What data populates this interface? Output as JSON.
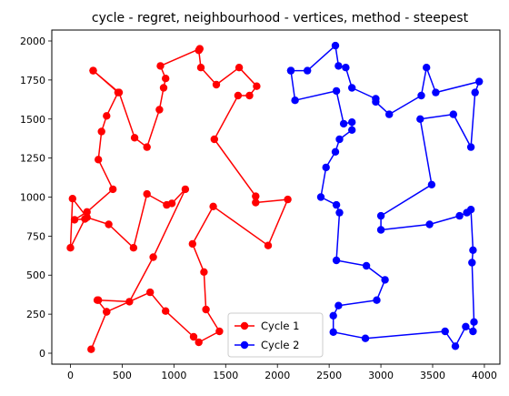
{
  "chart_data": {
    "type": "line",
    "title": "cycle - regret, neighbourhood - vertices, method - steepest",
    "xlabel": "",
    "ylabel": "",
    "xlim": [
      -180,
      4150
    ],
    "ylim": [
      -70,
      2070
    ],
    "xticks": [
      0,
      500,
      1000,
      1500,
      2000,
      2500,
      3000,
      3500,
      4000
    ],
    "yticks": [
      0,
      250,
      500,
      750,
      1000,
      1250,
      1500,
      1750,
      2000
    ],
    "grid": false,
    "legend": "lower center",
    "series": [
      {
        "name": "Cycle 1",
        "color": "#ff0000",
        "points": [
          [
            220,
            1810
          ],
          [
            460,
            1670
          ],
          [
            350,
            1520
          ],
          [
            300,
            1420
          ],
          [
            270,
            1240
          ],
          [
            410,
            1050
          ],
          [
            160,
            905
          ],
          [
            40,
            855
          ],
          [
            140,
            860
          ],
          [
            0,
            675
          ],
          [
            20,
            990
          ],
          [
            160,
            870
          ],
          [
            370,
            825
          ],
          [
            610,
            675
          ],
          [
            740,
            1020
          ],
          [
            930,
            950
          ],
          [
            980,
            960
          ],
          [
            1110,
            1050
          ],
          [
            800,
            615
          ],
          [
            570,
            330
          ],
          [
            270,
            340
          ],
          [
            260,
            340
          ],
          [
            350,
            265
          ],
          [
            200,
            25
          ],
          [
            350,
            265
          ],
          [
            770,
            390
          ],
          [
            920,
            270
          ],
          [
            1190,
            105
          ],
          [
            1240,
            70
          ],
          [
            1440,
            140
          ],
          [
            1310,
            280
          ],
          [
            1290,
            520
          ],
          [
            1180,
            700
          ],
          [
            1380,
            940
          ],
          [
            1910,
            690
          ],
          [
            2100,
            985
          ],
          [
            1790,
            965
          ],
          [
            1790,
            1005
          ],
          [
            1390,
            1370
          ],
          [
            1620,
            1650
          ],
          [
            1730,
            1650
          ],
          [
            1800,
            1710
          ],
          [
            1630,
            1830
          ],
          [
            1410,
            1720
          ],
          [
            1260,
            1830
          ],
          [
            1240,
            1940
          ],
          [
            1250,
            1950
          ],
          [
            870,
            1840
          ],
          [
            920,
            1760
          ],
          [
            900,
            1700
          ],
          [
            860,
            1560
          ],
          [
            740,
            1320
          ],
          [
            620,
            1380
          ],
          [
            470,
            1670
          ],
          [
            220,
            1810
          ]
        ]
      },
      {
        "name": "Cycle 2",
        "color": "#0000ff",
        "points": [
          [
            2130,
            1810
          ],
          [
            2290,
            1810
          ],
          [
            2560,
            1970
          ],
          [
            2590,
            1840
          ],
          [
            2660,
            1830
          ],
          [
            2720,
            1700
          ],
          [
            2950,
            1630
          ],
          [
            2950,
            1610
          ],
          [
            3080,
            1530
          ],
          [
            3390,
            1650
          ],
          [
            3440,
            1830
          ],
          [
            3530,
            1670
          ],
          [
            3950,
            1740
          ],
          [
            3910,
            1670
          ],
          [
            3870,
            1320
          ],
          [
            3700,
            1530
          ],
          [
            3380,
            1500
          ],
          [
            3490,
            1080
          ],
          [
            3000,
            880
          ],
          [
            3000,
            790
          ],
          [
            3470,
            825
          ],
          [
            3760,
            880
          ],
          [
            3830,
            900
          ],
          [
            3870,
            920
          ],
          [
            3890,
            660
          ],
          [
            3880,
            580
          ],
          [
            3900,
            200
          ],
          [
            3890,
            140
          ],
          [
            3820,
            170
          ],
          [
            3720,
            45
          ],
          [
            3620,
            140
          ],
          [
            2850,
            95
          ],
          [
            2540,
            135
          ],
          [
            2540,
            240
          ],
          [
            2590,
            305
          ],
          [
            2960,
            340
          ],
          [
            3040,
            470
          ],
          [
            2860,
            560
          ],
          [
            2570,
            595
          ],
          [
            2600,
            900
          ],
          [
            2570,
            950
          ],
          [
            2420,
            1000
          ],
          [
            2470,
            1190
          ],
          [
            2560,
            1290
          ],
          [
            2600,
            1370
          ],
          [
            2720,
            1430
          ],
          [
            2720,
            1480
          ],
          [
            2640,
            1470
          ],
          [
            2570,
            1680
          ],
          [
            2170,
            1620
          ],
          [
            2130,
            1810
          ]
        ]
      }
    ]
  }
}
